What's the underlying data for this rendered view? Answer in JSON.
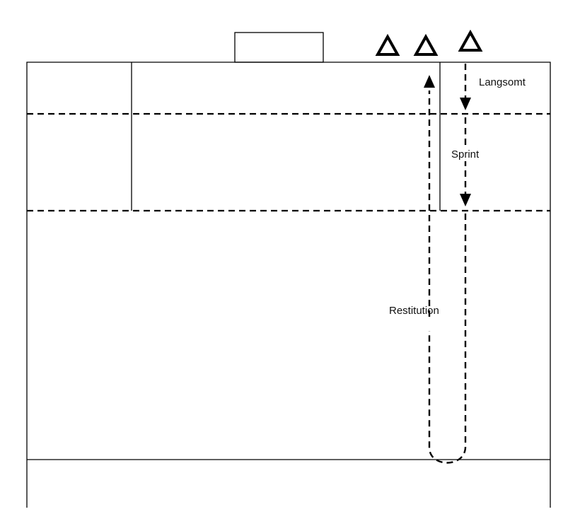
{
  "labels": {
    "slow": "Langsomt",
    "sprint": "Sprint",
    "recovery": "Restitution"
  },
  "colors": {
    "line": "#000000",
    "background": "#ffffff"
  },
  "cones": [
    {
      "name": "cone-1-icon"
    },
    {
      "name": "cone-2-icon"
    },
    {
      "name": "cone-3-icon"
    }
  ]
}
